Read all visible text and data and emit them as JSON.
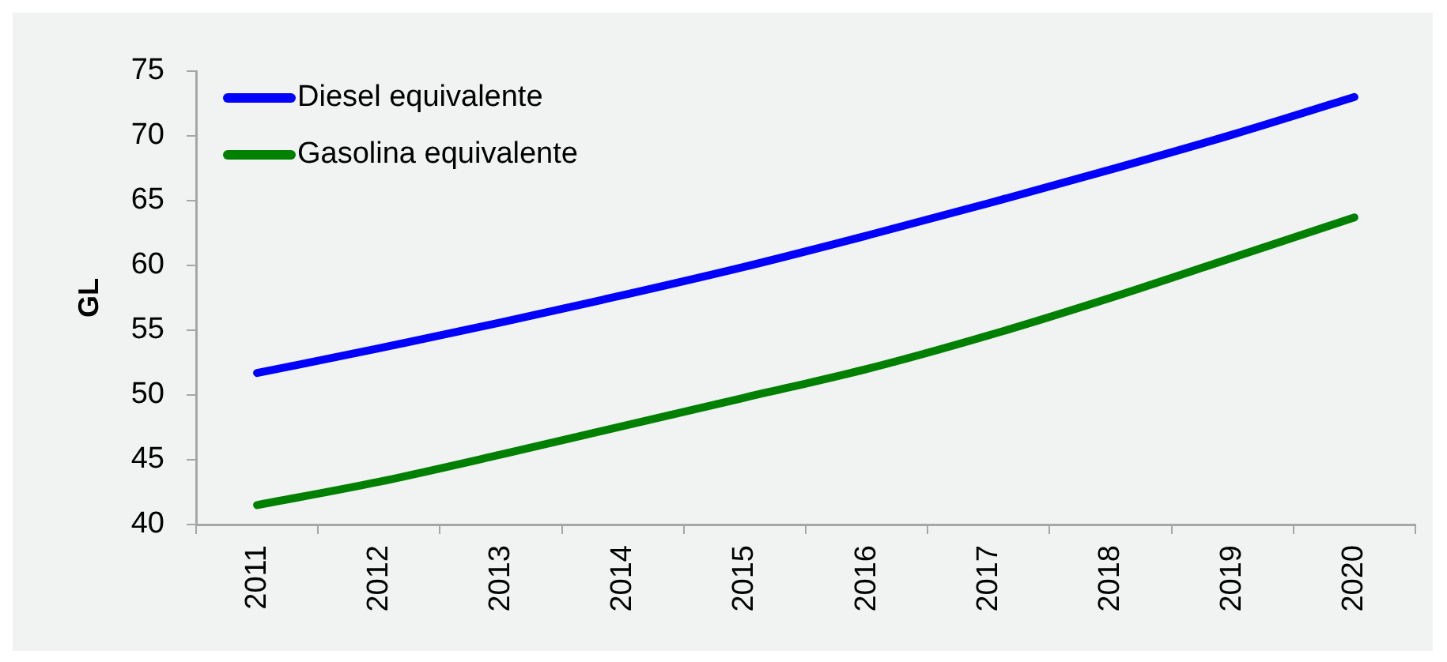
{
  "chart_data": {
    "type": "line",
    "ylabel": "GL",
    "categories": [
      "2011",
      "2012",
      "2013",
      "2014",
      "2015",
      "2016",
      "2017",
      "2018",
      "2019",
      "2020"
    ],
    "series": [
      {
        "name": "Diesel equivalente",
        "color": "#0000ff",
        "values": [
          51.7,
          53.6,
          55.6,
          57.7,
          59.9,
          62.3,
          64.8,
          67.4,
          70.1,
          73.0
        ]
      },
      {
        "name": "Gasolina equivalente",
        "color": "#008000",
        "values": [
          41.5,
          43.3,
          45.4,
          47.6,
          49.8,
          52.0,
          54.6,
          57.5,
          60.6,
          63.7
        ]
      }
    ],
    "ylim": [
      40,
      75
    ],
    "yticks": [
      40,
      45,
      50,
      55,
      60,
      65,
      70,
      75
    ],
    "grid": false,
    "legend": "top left",
    "marker": "none",
    "line_style": "solid"
  }
}
